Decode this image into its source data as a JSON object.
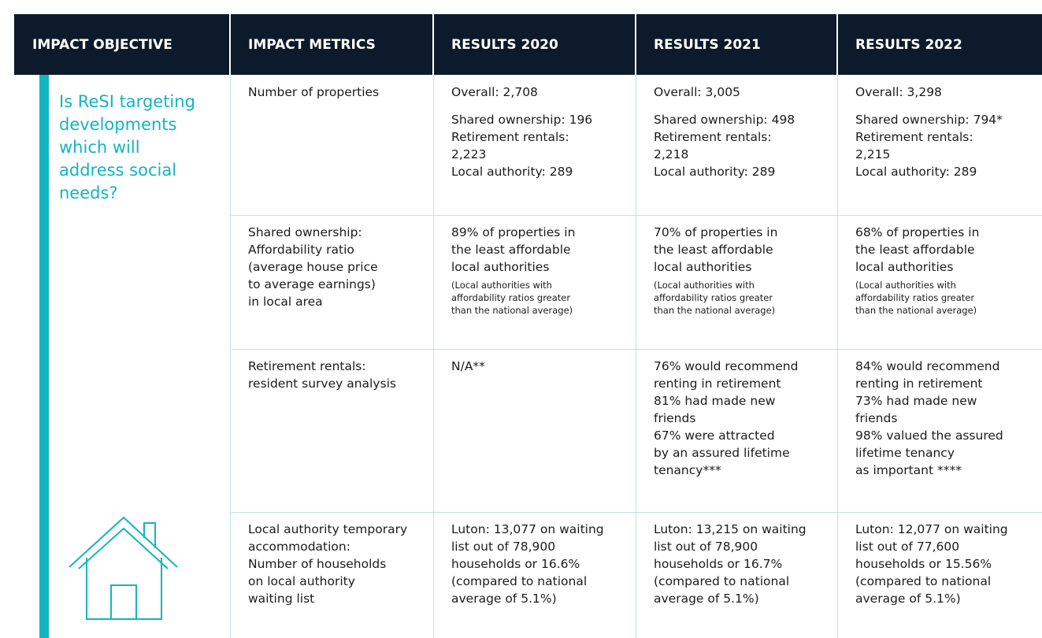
{
  "header": {
    "columns": [
      "IMPACT OBJECTIVE",
      "IMPACT METRICS",
      "RESULTS 2020",
      "RESULTS 2021",
      "RESULTS 2022"
    ]
  },
  "objective": {
    "lines": [
      "Is ReSI targeting",
      "developments",
      "which will",
      "address social",
      "needs?"
    ]
  },
  "rows": [
    {
      "metric": [
        "Number of properties"
      ],
      "results": [
        {
          "paragraphs": [
            [
              "Overall: 2,708"
            ],
            [
              "Shared ownership: 196",
              "Retirement rentals:",
              "2,223",
              "Local authority: 289"
            ]
          ]
        },
        {
          "paragraphs": [
            [
              "Overall: 3,005"
            ],
            [
              "Shared ownership: 498",
              "Retirement rentals:",
              "2,218",
              "Local authority: 289"
            ]
          ]
        },
        {
          "paragraphs": [
            [
              "Overall: 3,298"
            ],
            [
              "Shared ownership: 794*",
              "Retirement rentals:",
              "2,215",
              "Local authority: 289"
            ]
          ]
        }
      ]
    },
    {
      "metric": [
        "Shared ownership:",
        "Affordability ratio",
        "(average house price",
        "to average earnings)",
        "in local area"
      ],
      "results": [
        {
          "paragraphs": [
            [
              "89% of properties in",
              "the least affordable",
              "local authorities"
            ]
          ],
          "note": [
            "(Local authorities with",
            "affordability ratios greater",
            "than the national average)"
          ]
        },
        {
          "paragraphs": [
            [
              "70% of properties in",
              "the least affordable",
              "local authorities"
            ]
          ],
          "note": [
            "(Local authorities with",
            "affordability ratios greater",
            "than the national average)"
          ]
        },
        {
          "paragraphs": [
            [
              "68% of properties in",
              "the least affordable",
              "local authorities"
            ]
          ],
          "note": [
            "(Local authorities with",
            "affordability ratios greater",
            "than the national average)"
          ]
        }
      ]
    },
    {
      "metric": [
        "Retirement rentals:",
        "resident survey analysis"
      ],
      "results": [
        {
          "paragraphs": [
            [
              "N/A**"
            ]
          ]
        },
        {
          "paragraphs": [
            [
              "76% would recommend",
              "renting in retirement",
              "81% had made new",
              "friends",
              "67% were attracted",
              "by an assured lifetime",
              "tenancy***"
            ]
          ]
        },
        {
          "paragraphs": [
            [
              "84% would recommend",
              "renting in retirement",
              "73% had made new",
              "friends",
              "98% valued the assured",
              "lifetime tenancy",
              "as important ****"
            ]
          ]
        }
      ]
    },
    {
      "metric": [
        "Local authority temporary",
        "accommodation:",
        "Number of households",
        "on local authority",
        "waiting list"
      ],
      "results": [
        {
          "paragraphs": [
            [
              "Luton: 13,077 on waiting",
              "list out of 78,900",
              "households or 16.6%",
              "(compared to national",
              "average of 5.1%)"
            ]
          ]
        },
        {
          "paragraphs": [
            [
              "Luton: 13,215 on waiting",
              "list out of 78,900",
              "households or 16.7%",
              "(compared to national",
              "average of 5.1%)"
            ]
          ]
        },
        {
          "paragraphs": [
            [
              "Luton: 12,077 on waiting",
              "list out of 77,600",
              "households or 15.56%",
              "(compared to national",
              "average of 5.1%)"
            ]
          ]
        }
      ]
    }
  ]
}
